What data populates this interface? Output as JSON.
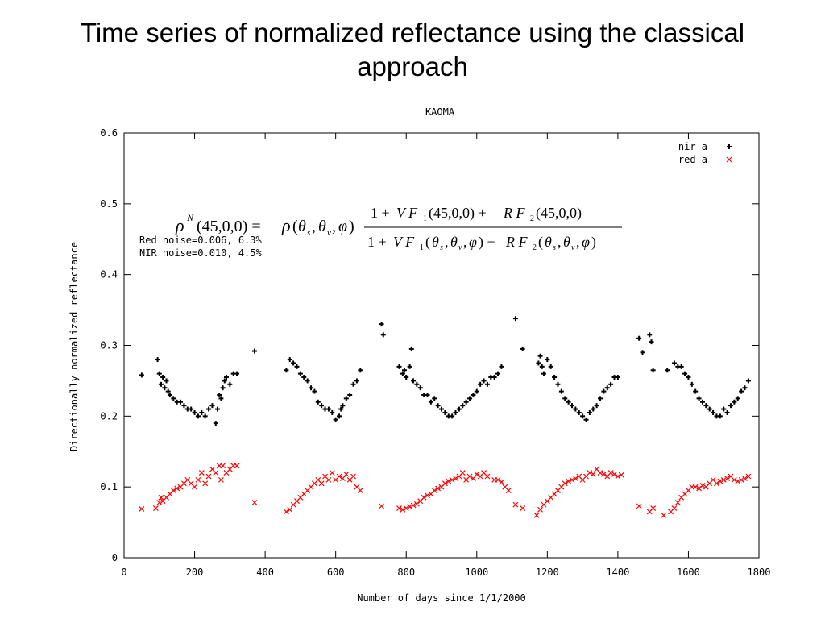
{
  "slide": {
    "title": "Time series of normalized reflectance using the classical approach"
  },
  "chart_data": {
    "type": "scatter",
    "title": "KAOMA",
    "xlabel": "Number of days since 1/1/2000",
    "ylabel": "Directionally normalized reflectance",
    "xlim": [
      0,
      1800
    ],
    "ylim": [
      0,
      0.6
    ],
    "x_ticks": [
      "0",
      "200",
      "400",
      "600",
      "800",
      "1000",
      "1200",
      "1400",
      "1600",
      "1800"
    ],
    "y_ticks": [
      "0",
      "0.1",
      "0.2",
      "0.3",
      "0.4",
      "0.5",
      "0.6"
    ],
    "legend_position": "top-right",
    "grid": false,
    "annotations": {
      "noise_red": "Red noise=0.006, 6.3%",
      "noise_nir": "NIR noise=0.010, 4.5%",
      "formula": "ρN(45,0,0) = ρ(θs,θv,φ) · [1 + V F1(45,0,0) + R F2(45,0,0)] / [1 + V F1(θs,θv,φ) + R F2(θs,θv,φ)]"
    },
    "series": [
      {
        "name": "nir-a",
        "marker": "+",
        "color": "#000000",
        "points": [
          [
            50,
            0.258
          ],
          [
            95,
            0.28
          ],
          [
            100,
            0.26
          ],
          [
            105,
            0.245
          ],
          [
            110,
            0.255
          ],
          [
            115,
            0.24
          ],
          [
            120,
            0.25
          ],
          [
            125,
            0.235
          ],
          [
            130,
            0.23
          ],
          [
            140,
            0.225
          ],
          [
            150,
            0.22
          ],
          [
            160,
            0.22
          ],
          [
            170,
            0.215
          ],
          [
            180,
            0.21
          ],
          [
            190,
            0.21
          ],
          [
            200,
            0.205
          ],
          [
            210,
            0.2
          ],
          [
            220,
            0.205
          ],
          [
            230,
            0.2
          ],
          [
            240,
            0.21
          ],
          [
            250,
            0.215
          ],
          [
            260,
            0.19
          ],
          [
            265,
            0.21
          ],
          [
            270,
            0.23
          ],
          [
            275,
            0.225
          ],
          [
            280,
            0.24
          ],
          [
            285,
            0.25
          ],
          [
            290,
            0.255
          ],
          [
            300,
            0.245
          ],
          [
            310,
            0.26
          ],
          [
            320,
            0.26
          ],
          [
            370,
            0.292
          ],
          [
            460,
            0.265
          ],
          [
            470,
            0.28
          ],
          [
            480,
            0.275
          ],
          [
            490,
            0.27
          ],
          [
            500,
            0.26
          ],
          [
            510,
            0.255
          ],
          [
            520,
            0.25
          ],
          [
            530,
            0.24
          ],
          [
            540,
            0.235
          ],
          [
            550,
            0.22
          ],
          [
            560,
            0.215
          ],
          [
            570,
            0.21
          ],
          [
            580,
            0.21
          ],
          [
            590,
            0.205
          ],
          [
            600,
            0.195
          ],
          [
            610,
            0.2
          ],
          [
            615,
            0.21
          ],
          [
            620,
            0.215
          ],
          [
            630,
            0.225
          ],
          [
            640,
            0.23
          ],
          [
            650,
            0.245
          ],
          [
            660,
            0.25
          ],
          [
            670,
            0.265
          ],
          [
            730,
            0.33
          ],
          [
            735,
            0.315
          ],
          [
            780,
            0.27
          ],
          [
            790,
            0.26
          ],
          [
            795,
            0.265
          ],
          [
            800,
            0.255
          ],
          [
            810,
            0.27
          ],
          [
            815,
            0.295
          ],
          [
            820,
            0.25
          ],
          [
            830,
            0.245
          ],
          [
            840,
            0.24
          ],
          [
            850,
            0.23
          ],
          [
            860,
            0.23
          ],
          [
            870,
            0.22
          ],
          [
            880,
            0.225
          ],
          [
            890,
            0.215
          ],
          [
            900,
            0.21
          ],
          [
            910,
            0.205
          ],
          [
            920,
            0.2
          ],
          [
            930,
            0.2
          ],
          [
            940,
            0.205
          ],
          [
            950,
            0.21
          ],
          [
            960,
            0.215
          ],
          [
            970,
            0.22
          ],
          [
            980,
            0.225
          ],
          [
            990,
            0.23
          ],
          [
            1000,
            0.235
          ],
          [
            1010,
            0.245
          ],
          [
            1020,
            0.25
          ],
          [
            1030,
            0.245
          ],
          [
            1040,
            0.255
          ],
          [
            1050,
            0.255
          ],
          [
            1060,
            0.26
          ],
          [
            1070,
            0.27
          ],
          [
            1110,
            0.338
          ],
          [
            1130,
            0.295
          ],
          [
            1175,
            0.275
          ],
          [
            1180,
            0.285
          ],
          [
            1185,
            0.27
          ],
          [
            1190,
            0.26
          ],
          [
            1200,
            0.28
          ],
          [
            1210,
            0.27
          ],
          [
            1220,
            0.255
          ],
          [
            1230,
            0.245
          ],
          [
            1240,
            0.235
          ],
          [
            1250,
            0.225
          ],
          [
            1260,
            0.22
          ],
          [
            1270,
            0.215
          ],
          [
            1280,
            0.21
          ],
          [
            1290,
            0.205
          ],
          [
            1300,
            0.2
          ],
          [
            1310,
            0.195
          ],
          [
            1320,
            0.205
          ],
          [
            1330,
            0.21
          ],
          [
            1340,
            0.215
          ],
          [
            1350,
            0.225
          ],
          [
            1360,
            0.235
          ],
          [
            1370,
            0.24
          ],
          [
            1380,
            0.245
          ],
          [
            1390,
            0.255
          ],
          [
            1400,
            0.255
          ],
          [
            1460,
            0.31
          ],
          [
            1470,
            0.29
          ],
          [
            1490,
            0.315
          ],
          [
            1495,
            0.305
          ],
          [
            1500,
            0.265
          ],
          [
            1540,
            0.265
          ],
          [
            1560,
            0.275
          ],
          [
            1570,
            0.27
          ],
          [
            1580,
            0.27
          ],
          [
            1590,
            0.26
          ],
          [
            1600,
            0.255
          ],
          [
            1610,
            0.245
          ],
          [
            1620,
            0.235
          ],
          [
            1630,
            0.225
          ],
          [
            1640,
            0.22
          ],
          [
            1650,
            0.215
          ],
          [
            1660,
            0.21
          ],
          [
            1670,
            0.205
          ],
          [
            1680,
            0.2
          ],
          [
            1690,
            0.2
          ],
          [
            1700,
            0.21
          ],
          [
            1710,
            0.205
          ],
          [
            1720,
            0.215
          ],
          [
            1730,
            0.22
          ],
          [
            1740,
            0.225
          ],
          [
            1750,
            0.235
          ],
          [
            1760,
            0.24
          ],
          [
            1770,
            0.25
          ]
        ]
      },
      {
        "name": "red-a",
        "marker": "x",
        "color": "#ff0000",
        "points": [
          [
            50,
            0.069
          ],
          [
            90,
            0.07
          ],
          [
            100,
            0.078
          ],
          [
            105,
            0.085
          ],
          [
            110,
            0.08
          ],
          [
            120,
            0.085
          ],
          [
            130,
            0.09
          ],
          [
            140,
            0.095
          ],
          [
            150,
            0.098
          ],
          [
            160,
            0.1
          ],
          [
            170,
            0.105
          ],
          [
            180,
            0.11
          ],
          [
            190,
            0.105
          ],
          [
            200,
            0.1
          ],
          [
            210,
            0.11
          ],
          [
            220,
            0.12
          ],
          [
            230,
            0.105
          ],
          [
            240,
            0.115
          ],
          [
            250,
            0.125
          ],
          [
            260,
            0.12
          ],
          [
            270,
            0.13
          ],
          [
            275,
            0.11
          ],
          [
            280,
            0.13
          ],
          [
            290,
            0.12
          ],
          [
            300,
            0.125
          ],
          [
            310,
            0.13
          ],
          [
            320,
            0.13
          ],
          [
            370,
            0.078
          ],
          [
            460,
            0.065
          ],
          [
            470,
            0.068
          ],
          [
            480,
            0.075
          ],
          [
            490,
            0.08
          ],
          [
            500,
            0.085
          ],
          [
            510,
            0.09
          ],
          [
            520,
            0.095
          ],
          [
            530,
            0.1
          ],
          [
            540,
            0.105
          ],
          [
            550,
            0.11
          ],
          [
            560,
            0.105
          ],
          [
            570,
            0.115
          ],
          [
            580,
            0.11
          ],
          [
            590,
            0.12
          ],
          [
            600,
            0.11
          ],
          [
            610,
            0.115
          ],
          [
            620,
            0.112
          ],
          [
            630,
            0.118
          ],
          [
            640,
            0.11
          ],
          [
            650,
            0.115
          ],
          [
            660,
            0.1
          ],
          [
            670,
            0.095
          ],
          [
            730,
            0.073
          ],
          [
            780,
            0.07
          ],
          [
            790,
            0.068
          ],
          [
            800,
            0.07
          ],
          [
            810,
            0.072
          ],
          [
            820,
            0.074
          ],
          [
            830,
            0.076
          ],
          [
            840,
            0.08
          ],
          [
            850,
            0.085
          ],
          [
            860,
            0.088
          ],
          [
            870,
            0.09
          ],
          [
            880,
            0.095
          ],
          [
            890,
            0.098
          ],
          [
            900,
            0.1
          ],
          [
            910,
            0.105
          ],
          [
            920,
            0.108
          ],
          [
            930,
            0.11
          ],
          [
            940,
            0.112
          ],
          [
            950,
            0.115
          ],
          [
            960,
            0.12
          ],
          [
            970,
            0.11
          ],
          [
            980,
            0.115
          ],
          [
            990,
            0.112
          ],
          [
            1000,
            0.118
          ],
          [
            1010,
            0.115
          ],
          [
            1020,
            0.12
          ],
          [
            1030,
            0.115
          ],
          [
            1050,
            0.11
          ],
          [
            1060,
            0.11
          ],
          [
            1070,
            0.107
          ],
          [
            1080,
            0.1
          ],
          [
            1090,
            0.095
          ],
          [
            1110,
            0.075
          ],
          [
            1130,
            0.07
          ],
          [
            1170,
            0.06
          ],
          [
            1180,
            0.068
          ],
          [
            1190,
            0.075
          ],
          [
            1200,
            0.08
          ],
          [
            1210,
            0.085
          ],
          [
            1220,
            0.09
          ],
          [
            1230,
            0.095
          ],
          [
            1240,
            0.1
          ],
          [
            1250,
            0.105
          ],
          [
            1260,
            0.108
          ],
          [
            1270,
            0.11
          ],
          [
            1280,
            0.112
          ],
          [
            1290,
            0.115
          ],
          [
            1300,
            0.11
          ],
          [
            1310,
            0.115
          ],
          [
            1320,
            0.12
          ],
          [
            1330,
            0.118
          ],
          [
            1340,
            0.125
          ],
          [
            1350,
            0.12
          ],
          [
            1360,
            0.118
          ],
          [
            1370,
            0.115
          ],
          [
            1380,
            0.12
          ],
          [
            1390,
            0.118
          ],
          [
            1400,
            0.115
          ],
          [
            1410,
            0.117
          ],
          [
            1460,
            0.073
          ],
          [
            1490,
            0.065
          ],
          [
            1500,
            0.07
          ],
          [
            1530,
            0.06
          ],
          [
            1550,
            0.065
          ],
          [
            1560,
            0.07
          ],
          [
            1570,
            0.078
          ],
          [
            1580,
            0.085
          ],
          [
            1590,
            0.09
          ],
          [
            1600,
            0.095
          ],
          [
            1610,
            0.1
          ],
          [
            1620,
            0.1
          ],
          [
            1630,
            0.098
          ],
          [
            1640,
            0.102
          ],
          [
            1650,
            0.1
          ],
          [
            1660,
            0.105
          ],
          [
            1670,
            0.11
          ],
          [
            1680,
            0.105
          ],
          [
            1690,
            0.108
          ],
          [
            1700,
            0.11
          ],
          [
            1710,
            0.112
          ],
          [
            1720,
            0.115
          ],
          [
            1730,
            0.11
          ],
          [
            1740,
            0.108
          ],
          [
            1750,
            0.11
          ],
          [
            1760,
            0.112
          ],
          [
            1770,
            0.115
          ]
        ]
      }
    ]
  }
}
